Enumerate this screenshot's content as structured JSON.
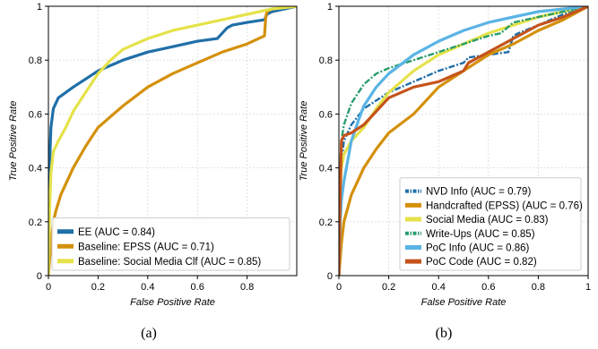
{
  "chart_data": [
    {
      "type": "line",
      "caption": "(a)",
      "xlabel": "False Positive Rate",
      "ylabel": "True Positive Rate",
      "xlim": [
        0,
        1
      ],
      "ylim": [
        0,
        1
      ],
      "xticks": [
        "0",
        "0.2",
        "0.4",
        "0.6",
        "0.8"
      ],
      "yticks": [
        "0",
        "0.2",
        "0.4",
        "0.6",
        "0.8",
        "1"
      ],
      "grid": true,
      "legend_position": "lower-right",
      "series": [
        {
          "name": "EE (AUC = 0.84)",
          "color": "#1f6fa8",
          "dash": "solid",
          "x": [
            0,
            0.005,
            0.01,
            0.02,
            0.04,
            0.07,
            0.1,
            0.15,
            0.2,
            0.3,
            0.4,
            0.5,
            0.6,
            0.68,
            0.7,
            0.72,
            0.74,
            0.8,
            0.87,
            0.88,
            0.9,
            0.95,
            1.0
          ],
          "y": [
            0,
            0.42,
            0.55,
            0.62,
            0.66,
            0.68,
            0.7,
            0.73,
            0.76,
            0.8,
            0.83,
            0.85,
            0.87,
            0.88,
            0.9,
            0.92,
            0.93,
            0.94,
            0.95,
            0.97,
            0.98,
            0.99,
            1.0
          ]
        },
        {
          "name": "Baseline: EPSS (AUC = 0.71)",
          "color": "#d4900a",
          "dash": "solid",
          "x": [
            0,
            0.01,
            0.02,
            0.03,
            0.05,
            0.1,
            0.15,
            0.2,
            0.3,
            0.4,
            0.5,
            0.6,
            0.7,
            0.8,
            0.87,
            0.875,
            0.88,
            0.9,
            1.0
          ],
          "y": [
            0,
            0.12,
            0.2,
            0.24,
            0.3,
            0.4,
            0.48,
            0.55,
            0.63,
            0.7,
            0.75,
            0.79,
            0.83,
            0.86,
            0.89,
            0.96,
            0.98,
            0.99,
            1.0
          ]
        },
        {
          "name": "Baseline: Social Media Clf (AUC = 0.85)",
          "color": "#e5e24a",
          "dash": "solid",
          "x": [
            0,
            0.005,
            0.01,
            0.02,
            0.04,
            0.07,
            0.1,
            0.15,
            0.2,
            0.25,
            0.3,
            0.4,
            0.5,
            0.6,
            0.7,
            0.8,
            0.9,
            1.0
          ],
          "y": [
            0,
            0.25,
            0.38,
            0.46,
            0.5,
            0.55,
            0.61,
            0.68,
            0.75,
            0.8,
            0.84,
            0.88,
            0.91,
            0.93,
            0.95,
            0.97,
            0.99,
            1.0
          ]
        }
      ]
    },
    {
      "type": "line",
      "caption": "(b)",
      "xlabel": "False Positive Rate",
      "ylabel": "True Positive Rate",
      "xlim": [
        0,
        1
      ],
      "ylim": [
        0,
        1
      ],
      "xticks": [
        "0",
        "0.2",
        "0.4",
        "0.6",
        "0.8",
        "1"
      ],
      "yticks": [
        "0",
        "0.2",
        "0.4",
        "0.6",
        "0.8",
        "1"
      ],
      "grid": true,
      "legend_position": "lower-right",
      "series": [
        {
          "name": "NVD Info (AUC = 0.79)",
          "color": "#1f6fa8",
          "dash": "dashdot",
          "x": [
            0,
            0.01,
            0.02,
            0.05,
            0.1,
            0.15,
            0.2,
            0.3,
            0.4,
            0.5,
            0.52,
            0.6,
            0.68,
            0.7,
            0.72,
            0.8,
            0.9,
            1.0
          ],
          "y": [
            0,
            0.42,
            0.5,
            0.56,
            0.62,
            0.65,
            0.68,
            0.72,
            0.76,
            0.79,
            0.81,
            0.82,
            0.83,
            0.89,
            0.9,
            0.93,
            0.97,
            1.0
          ]
        },
        {
          "name": "Handcrafted (EPSS) (AUC = 0.76)",
          "color": "#d4900a",
          "dash": "solid",
          "x": [
            0,
            0.01,
            0.02,
            0.05,
            0.1,
            0.15,
            0.2,
            0.3,
            0.4,
            0.5,
            0.6,
            0.7,
            0.8,
            0.9,
            1.0
          ],
          "y": [
            0,
            0.12,
            0.2,
            0.3,
            0.4,
            0.47,
            0.53,
            0.6,
            0.7,
            0.76,
            0.82,
            0.86,
            0.91,
            0.95,
            1.0
          ]
        },
        {
          "name": "Social Media (AUC = 0.83)",
          "color": "#e5e24a",
          "dash": "solid",
          "x": [
            0,
            0.005,
            0.01,
            0.02,
            0.05,
            0.1,
            0.15,
            0.2,
            0.3,
            0.4,
            0.5,
            0.6,
            0.7,
            0.8,
            0.9,
            1.0
          ],
          "y": [
            0,
            0.3,
            0.4,
            0.45,
            0.5,
            0.55,
            0.62,
            0.68,
            0.76,
            0.82,
            0.86,
            0.9,
            0.93,
            0.96,
            0.98,
            1.0
          ]
        },
        {
          "name": "Write-Ups (AUC = 0.85)",
          "color": "#2a9d6e",
          "dash": "dashdot",
          "x": [
            0,
            0.005,
            0.01,
            0.02,
            0.05,
            0.1,
            0.15,
            0.2,
            0.3,
            0.4,
            0.5,
            0.6,
            0.65,
            0.7,
            0.8,
            0.9,
            1.0
          ],
          "y": [
            0,
            0.4,
            0.5,
            0.56,
            0.64,
            0.71,
            0.75,
            0.77,
            0.8,
            0.83,
            0.86,
            0.89,
            0.9,
            0.94,
            0.96,
            0.98,
            1.0
          ]
        },
        {
          "name": "PoC Info (AUC = 0.86)",
          "color": "#5ab4e5",
          "dash": "solid",
          "x": [
            0,
            0.005,
            0.01,
            0.02,
            0.05,
            0.08,
            0.1,
            0.15,
            0.2,
            0.3,
            0.4,
            0.5,
            0.6,
            0.7,
            0.8,
            0.9,
            1.0
          ],
          "y": [
            0,
            0.2,
            0.28,
            0.35,
            0.5,
            0.58,
            0.63,
            0.7,
            0.75,
            0.82,
            0.87,
            0.91,
            0.94,
            0.96,
            0.98,
            0.99,
            1.0
          ]
        },
        {
          "name": "PoC Code (AUC = 0.82)",
          "color": "#c4531c",
          "dash": "solid",
          "x": [
            0,
            0.005,
            0.01,
            0.02,
            0.05,
            0.1,
            0.15,
            0.2,
            0.3,
            0.4,
            0.5,
            0.52,
            0.6,
            0.7,
            0.8,
            0.9,
            1.0
          ],
          "y": [
            0,
            0.3,
            0.5,
            0.52,
            0.53,
            0.56,
            0.61,
            0.66,
            0.7,
            0.72,
            0.76,
            0.79,
            0.83,
            0.88,
            0.93,
            0.96,
            1.0
          ]
        }
      ]
    }
  ]
}
